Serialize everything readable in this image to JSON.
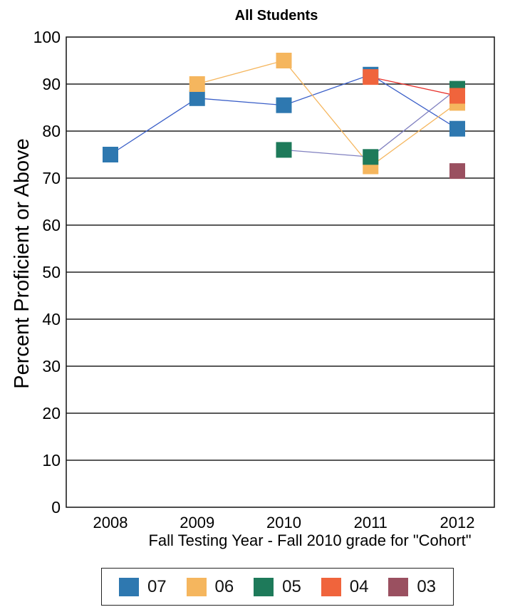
{
  "chart_data": {
    "type": "line",
    "title": "All Students",
    "xlabel": "Fall Testing Year  - Fall 2010 grade for \"Cohort\"",
    "ylabel": "Percent Proficient or Above",
    "categories": [
      "2008",
      "2009",
      "2010",
      "2011",
      "2012"
    ],
    "ylim": [
      0,
      100
    ],
    "yticks": [
      0,
      10,
      20,
      30,
      40,
      50,
      60,
      70,
      80,
      90,
      100
    ],
    "grid": true,
    "legend": "bottom",
    "series": [
      {
        "name": "07",
        "color": "#2e78b0",
        "lineColor": "#3a5fc8",
        "values": [
          75,
          87,
          85.5,
          92,
          80.5
        ]
      },
      {
        "name": "06",
        "color": "#f5b65e",
        "lineColor": "#f5b65e",
        "values": [
          null,
          90,
          95,
          72.5,
          86
        ]
      },
      {
        "name": "05",
        "color": "#1e7a5a",
        "lineColor": "#8080c0",
        "values": [
          null,
          null,
          76,
          74.5,
          89
        ]
      },
      {
        "name": "04",
        "color": "#f0643c",
        "lineColor": "#e8302a",
        "values": [
          null,
          null,
          null,
          91.5,
          87.5
        ]
      },
      {
        "name": "03",
        "color": "#9a5060",
        "lineColor": "#9a5060",
        "values": [
          null,
          null,
          null,
          null,
          71.5
        ]
      }
    ]
  }
}
